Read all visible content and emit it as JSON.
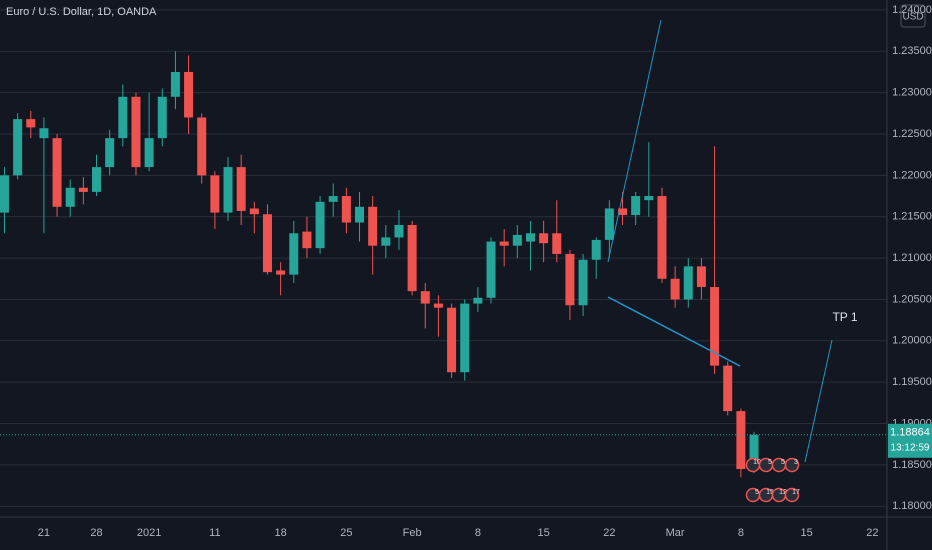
{
  "chart_data": {
    "type": "candlestick",
    "title": "Euro / U.S. Dollar, 1D, OANDA",
    "currency": "USD",
    "countdown": "13:12:59",
    "annotations": [
      "TP 1"
    ],
    "events_top": [
      "10",
      "5",
      "5",
      "3"
    ],
    "events_bottom": [
      "5",
      "15",
      "12",
      "17"
    ],
    "up_color": "#26a69a",
    "down_color": "#ef5350",
    "grid": true,
    "categories": [
      null,
      null,
      null,
      "21",
      null,
      null,
      null,
      "28",
      null,
      null,
      null,
      "2021",
      null,
      null,
      null,
      null,
      "11",
      null,
      null,
      null,
      null,
      "18",
      null,
      null,
      null,
      null,
      "25",
      null,
      null,
      null,
      null,
      "Feb",
      null,
      null,
      null,
      null,
      "8",
      null,
      null,
      null,
      null,
      "15",
      null,
      null,
      null,
      null,
      "22",
      null,
      null,
      null,
      null,
      "Mar",
      null,
      null,
      null,
      null,
      "8",
      null,
      null,
      null,
      null,
      "15",
      null,
      null,
      null,
      null,
      "22"
    ],
    "open": [
      1.2155,
      1.22,
      1.2268,
      1.2245,
      1.2245,
      1.2162,
      1.2185,
      1.218,
      1.221,
      1.2245,
      1.2295,
      1.221,
      1.2245,
      1.2295,
      1.2325,
      1.227,
      1.22,
      1.2155,
      1.221,
      1.216,
      1.2153,
      1.2085,
      1.208,
      1.2132,
      1.2112,
      1.2168,
      1.2175,
      1.2143,
      1.2162,
      1.2115,
      1.2125,
      1.214,
      1.206,
      1.2045,
      1.204,
      1.1962,
      1.2045,
      1.2052,
      1.212,
      1.2115,
      1.212,
      1.213,
      1.213,
      1.2105,
      1.2043,
      1.2098,
      1.2122,
      1.216,
      1.2152,
      1.217,
      1.2175,
      1.2075,
      1.205,
      1.209,
      1.2065,
      1.197,
      1.1915,
      1.1845,
      null,
      null,
      null,
      null,
      null,
      null,
      null,
      null,
      null
    ],
    "high": [
      1.221,
      1.2275,
      1.2278,
      1.227,
      1.225,
      1.2195,
      1.2198,
      1.2225,
      1.2255,
      1.231,
      1.23,
      1.23,
      1.2305,
      1.235,
      1.2345,
      1.2275,
      1.2205,
      1.2222,
      1.2225,
      1.2168,
      1.2165,
      1.2095,
      1.2145,
      1.215,
      1.2175,
      1.219,
      1.2185,
      1.218,
      1.2175,
      1.214,
      1.2158,
      1.2145,
      1.207,
      1.2055,
      1.2045,
      1.205,
      1.2065,
      1.2125,
      1.2135,
      1.214,
      1.2145,
      1.2145,
      1.217,
      1.211,
      1.2105,
      1.2125,
      1.217,
      1.218,
      1.218,
      1.224,
      1.2185,
      1.209,
      1.21,
      1.21,
      1.2235,
      1.1975,
      1.1918,
      1.189,
      null,
      null,
      null,
      null,
      null,
      null,
      null,
      null,
      null
    ],
    "low": [
      1.213,
      1.2195,
      1.2245,
      1.213,
      1.215,
      1.215,
      1.2165,
      1.2175,
      1.22,
      1.2235,
      1.22,
      1.2205,
      1.2235,
      1.228,
      1.225,
      1.219,
      1.2135,
      1.2145,
      1.214,
      1.213,
      1.208,
      1.2055,
      1.207,
      1.21,
      1.2105,
      1.215,
      1.213,
      1.212,
      1.208,
      1.21,
      1.211,
      1.2055,
      1.2015,
      1.2005,
      1.1955,
      1.1952,
      1.2035,
      1.2045,
      1.209,
      1.21,
      1.2085,
      1.2095,
      1.2095,
      1.2025,
      1.203,
      1.2075,
      1.21,
      1.214,
      1.214,
      1.215,
      1.207,
      1.204,
      1.204,
      1.205,
      1.196,
      1.191,
      1.1835,
      1.184,
      null,
      null,
      null,
      null,
      null,
      null,
      null,
      null,
      null
    ],
    "close": [
      1.22,
      1.2268,
      1.2258,
      1.2257,
      1.2162,
      1.2185,
      1.218,
      1.221,
      1.2245,
      1.2295,
      1.221,
      1.2245,
      1.2295,
      1.2325,
      1.227,
      1.22,
      1.2155,
      1.221,
      1.2157,
      1.2153,
      1.2083,
      1.208,
      1.213,
      1.2112,
      1.2168,
      1.2175,
      1.2143,
      1.2162,
      1.2115,
      1.2125,
      1.214,
      1.206,
      1.2045,
      1.204,
      1.1962,
      1.2045,
      1.2052,
      1.212,
      1.2115,
      1.2128,
      1.213,
      1.2118,
      1.2105,
      1.2043,
      1.2098,
      1.2122,
      1.216,
      1.2152,
      1.2175,
      1.2175,
      1.2075,
      1.205,
      1.209,
      1.2065,
      1.197,
      1.1915,
      1.1845,
      1.18864,
      null,
      null,
      null,
      null,
      null,
      null,
      null,
      null,
      null
    ],
    "last_price": 1.18864,
    "ylim": [
      1.1787,
      1.2412
    ],
    "yticks": [
      {
        "value": 1.18,
        "label": "1.18000"
      },
      {
        "value": 1.185,
        "label": "1.18500"
      },
      {
        "value": 1.19,
        "label": "1.19000"
      },
      {
        "value": 1.195,
        "label": "1.19500"
      },
      {
        "value": 1.2,
        "label": "1.20000"
      },
      {
        "value": 1.205,
        "label": "1.20500"
      },
      {
        "value": 1.21,
        "label": "1.21000"
      },
      {
        "value": 1.215,
        "label": "1.21500"
      },
      {
        "value": 1.22,
        "label": "1.22000"
      },
      {
        "value": 1.225,
        "label": "1.22500"
      },
      {
        "value": 1.23,
        "label": "1.23000"
      },
      {
        "value": 1.235,
        "label": "1.23500"
      },
      {
        "value": 1.24,
        "label": "1.24000"
      }
    ]
  }
}
